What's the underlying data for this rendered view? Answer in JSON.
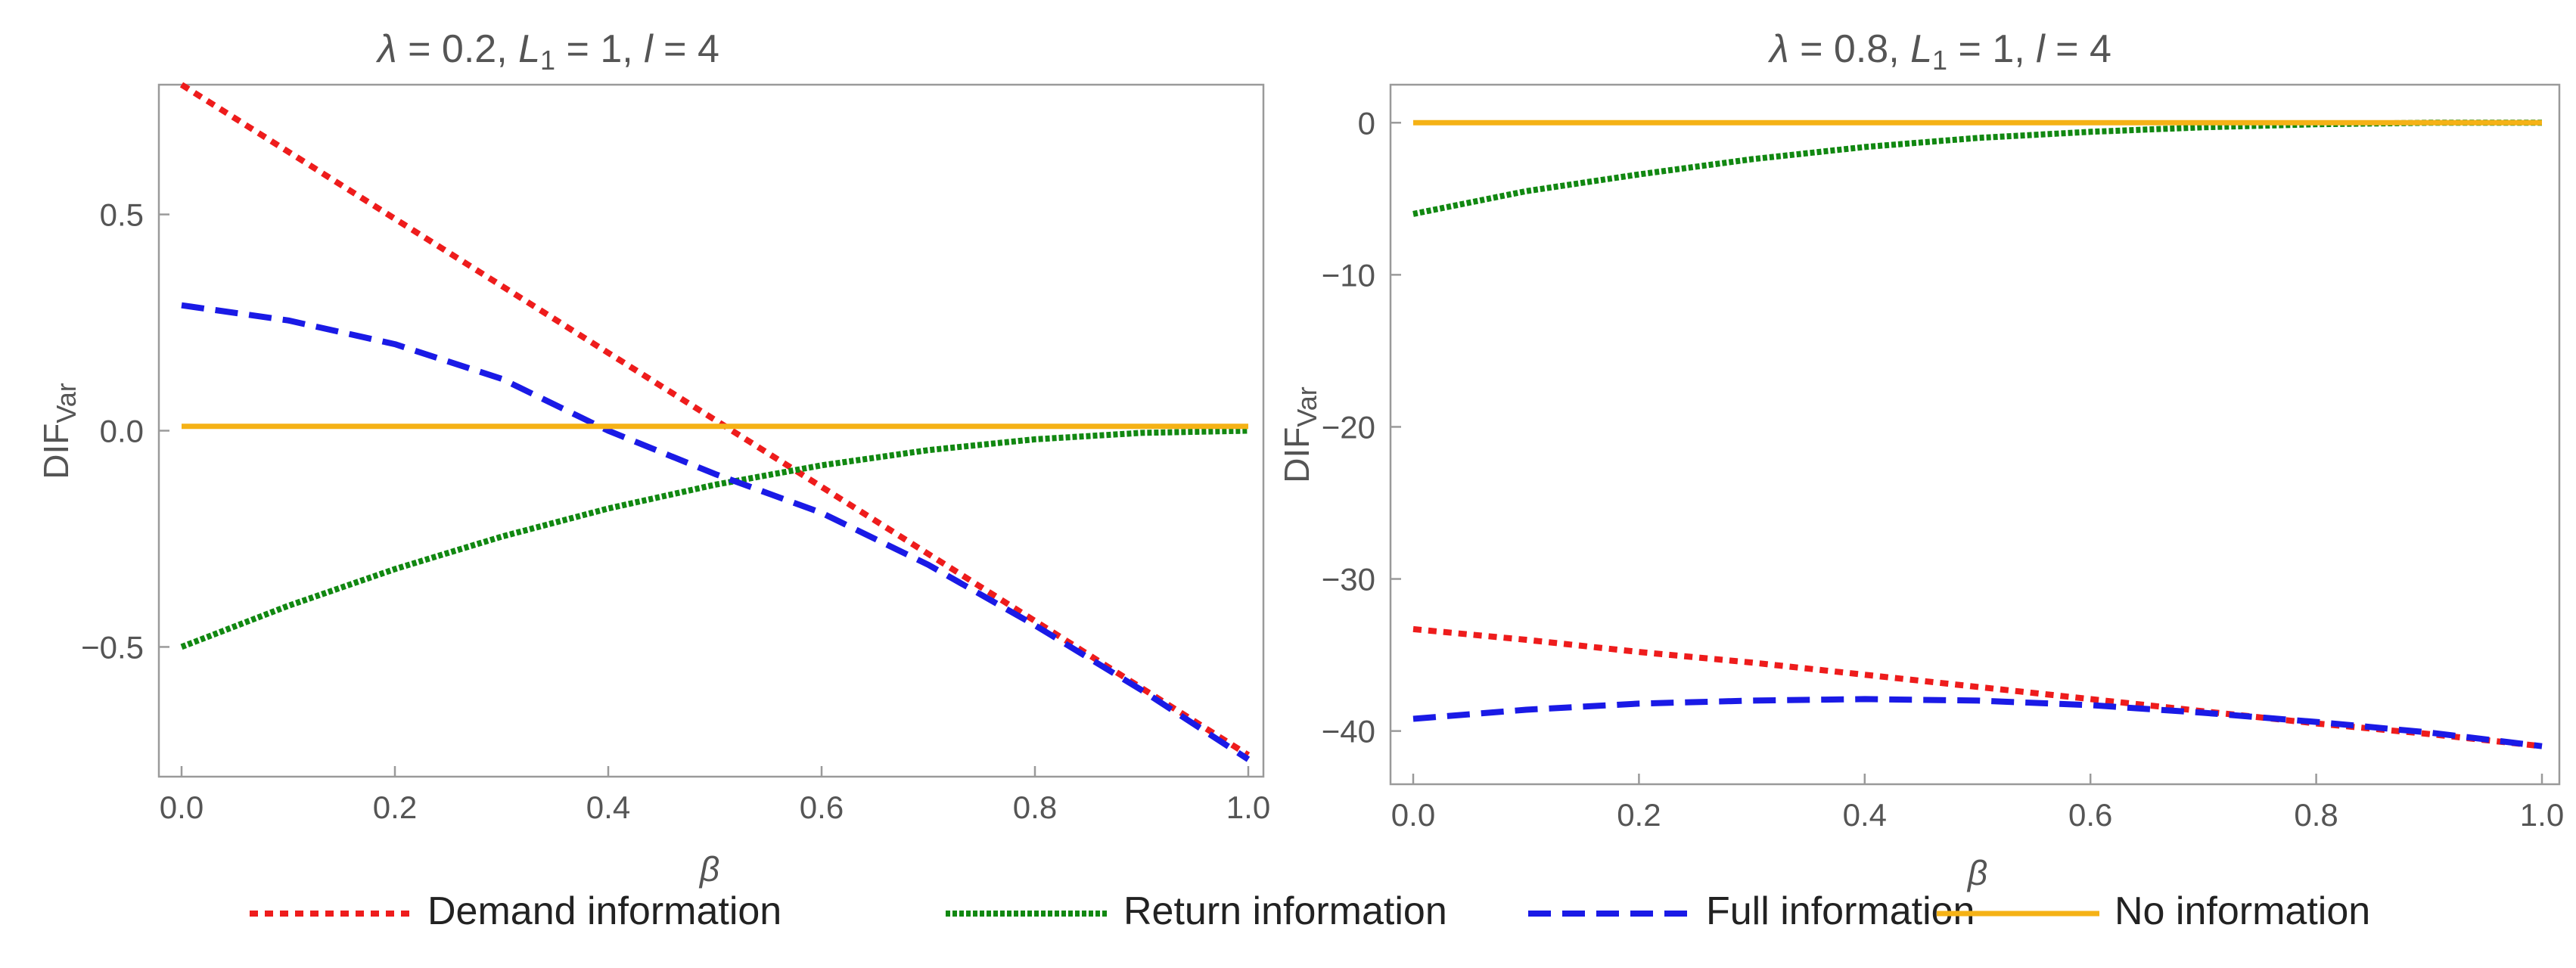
{
  "chart_data": [
    {
      "type": "line",
      "title": "λ = 0.2, L1 = 1, l = 4",
      "title_parts": {
        "lambda": "λ",
        "lambda_eq": " = 0.2, ",
        "L": "L",
        "sub": "1",
        "L_eq": " = 1, ",
        "l": "l",
        "l_eq": " = 4"
      },
      "xlabel": "β",
      "ylabel": "DIFVar",
      "ylabel_parts": {
        "main": "DIF",
        "sub": "Var"
      },
      "xlim": [
        0,
        1
      ],
      "ylim": [
        -0.8,
        0.8
      ],
      "xticks": [
        0,
        0.2,
        0.4,
        0.6,
        0.8,
        1
      ],
      "xtick_labels": [
        "0.0",
        "0.2",
        "0.4",
        "0.6",
        "0.8",
        "1.0"
      ],
      "yticks": [
        -0.5,
        0,
        0.5
      ],
      "ytick_labels": [
        "−0.5",
        "0.0",
        "0.5"
      ],
      "series": [
        {
          "key": "demand",
          "name": "Demand information",
          "x": [
            0,
            0.1,
            0.2,
            0.3,
            0.4,
            0.5,
            0.6,
            0.7,
            0.8,
            0.9,
            1.0
          ],
          "values": [
            0.8,
            0.645,
            0.49,
            0.335,
            0.18,
            0.025,
            -0.13,
            -0.285,
            -0.44,
            -0.595,
            -0.75
          ]
        },
        {
          "key": "return",
          "name": "Return information",
          "x": [
            0,
            0.1,
            0.2,
            0.3,
            0.4,
            0.5,
            0.6,
            0.7,
            0.8,
            0.9,
            1.0
          ],
          "values": [
            -0.5,
            -0.405,
            -0.32,
            -0.245,
            -0.18,
            -0.125,
            -0.08,
            -0.045,
            -0.02,
            -0.005,
            0.0
          ]
        },
        {
          "key": "full",
          "name": "Full information",
          "x": [
            0,
            0.1,
            0.2,
            0.3,
            0.4,
            0.5,
            0.6,
            0.7,
            0.8,
            0.9,
            1.0
          ],
          "values": [
            0.29,
            0.255,
            0.2,
            0.12,
            0.0,
            -0.1,
            -0.19,
            -0.31,
            -0.45,
            -0.6,
            -0.76
          ]
        },
        {
          "key": "none",
          "name": "No information",
          "x": [
            0,
            1.0
          ],
          "values": [
            0.01,
            0.01
          ]
        }
      ]
    },
    {
      "type": "line",
      "title": "λ = 0.8, L1 = 1, l = 4",
      "title_parts": {
        "lambda": "λ",
        "lambda_eq": " = 0.8, ",
        "L": "L",
        "sub": "1",
        "L_eq": " = 1, ",
        "l": "l",
        "l_eq": " = 4"
      },
      "xlabel": "β",
      "ylabel": "DIFVar",
      "ylabel_parts": {
        "main": "DIF",
        "sub": "Var"
      },
      "xlim": [
        0,
        1
      ],
      "ylim": [
        -43.5,
        2.5
      ],
      "xticks": [
        0,
        0.2,
        0.4,
        0.6,
        0.8,
        1
      ],
      "xtick_labels": [
        "0.0",
        "0.2",
        "0.4",
        "0.6",
        "0.8",
        "1.0"
      ],
      "yticks": [
        -40,
        -30,
        -20,
        -10,
        0
      ],
      "ytick_labels": [
        "−40",
        "−30",
        "−20",
        "−10",
        "0"
      ],
      "series": [
        {
          "key": "demand",
          "name": "Demand information",
          "x": [
            0,
            0.1,
            0.2,
            0.3,
            0.4,
            0.5,
            0.6,
            0.7,
            0.8,
            0.9,
            1.0
          ],
          "values": [
            -33.3,
            -34.0,
            -34.8,
            -35.5,
            -36.3,
            -37.1,
            -37.9,
            -38.7,
            -39.5,
            -40.2,
            -41.0
          ]
        },
        {
          "key": "return",
          "name": "Return information",
          "x": [
            0,
            0.1,
            0.2,
            0.3,
            0.4,
            0.5,
            0.6,
            0.7,
            0.8,
            0.9,
            1.0
          ],
          "values": [
            -6.0,
            -4.5,
            -3.4,
            -2.4,
            -1.6,
            -1.0,
            -0.6,
            -0.3,
            -0.1,
            0.0,
            0.0
          ]
        },
        {
          "key": "full",
          "name": "Full information",
          "x": [
            0,
            0.1,
            0.2,
            0.3,
            0.4,
            0.5,
            0.6,
            0.7,
            0.8,
            0.9,
            1.0
          ],
          "values": [
            -39.2,
            -38.6,
            -38.2,
            -38.0,
            -37.9,
            -38.0,
            -38.3,
            -38.8,
            -39.4,
            -40.1,
            -41.0
          ]
        },
        {
          "key": "none",
          "name": "No information",
          "x": [
            0,
            1.0
          ],
          "values": [
            0.0,
            0.0
          ]
        }
      ]
    }
  ],
  "styles": {
    "demand": {
      "color": "#ee1c1c",
      "dash": "11 9"
    },
    "return": {
      "color": "#118811",
      "dash": "6 3"
    },
    "full": {
      "color": "#1a1ae6",
      "dash": "30 15"
    },
    "none": {
      "color": "#f5b216",
      "dash": ""
    }
  },
  "legend": {
    "items": [
      {
        "key": "demand",
        "label": "Demand information"
      },
      {
        "key": "return",
        "label": "Return information"
      },
      {
        "key": "full",
        "label": "Full information"
      },
      {
        "key": "none",
        "label": "No information"
      }
    ]
  }
}
